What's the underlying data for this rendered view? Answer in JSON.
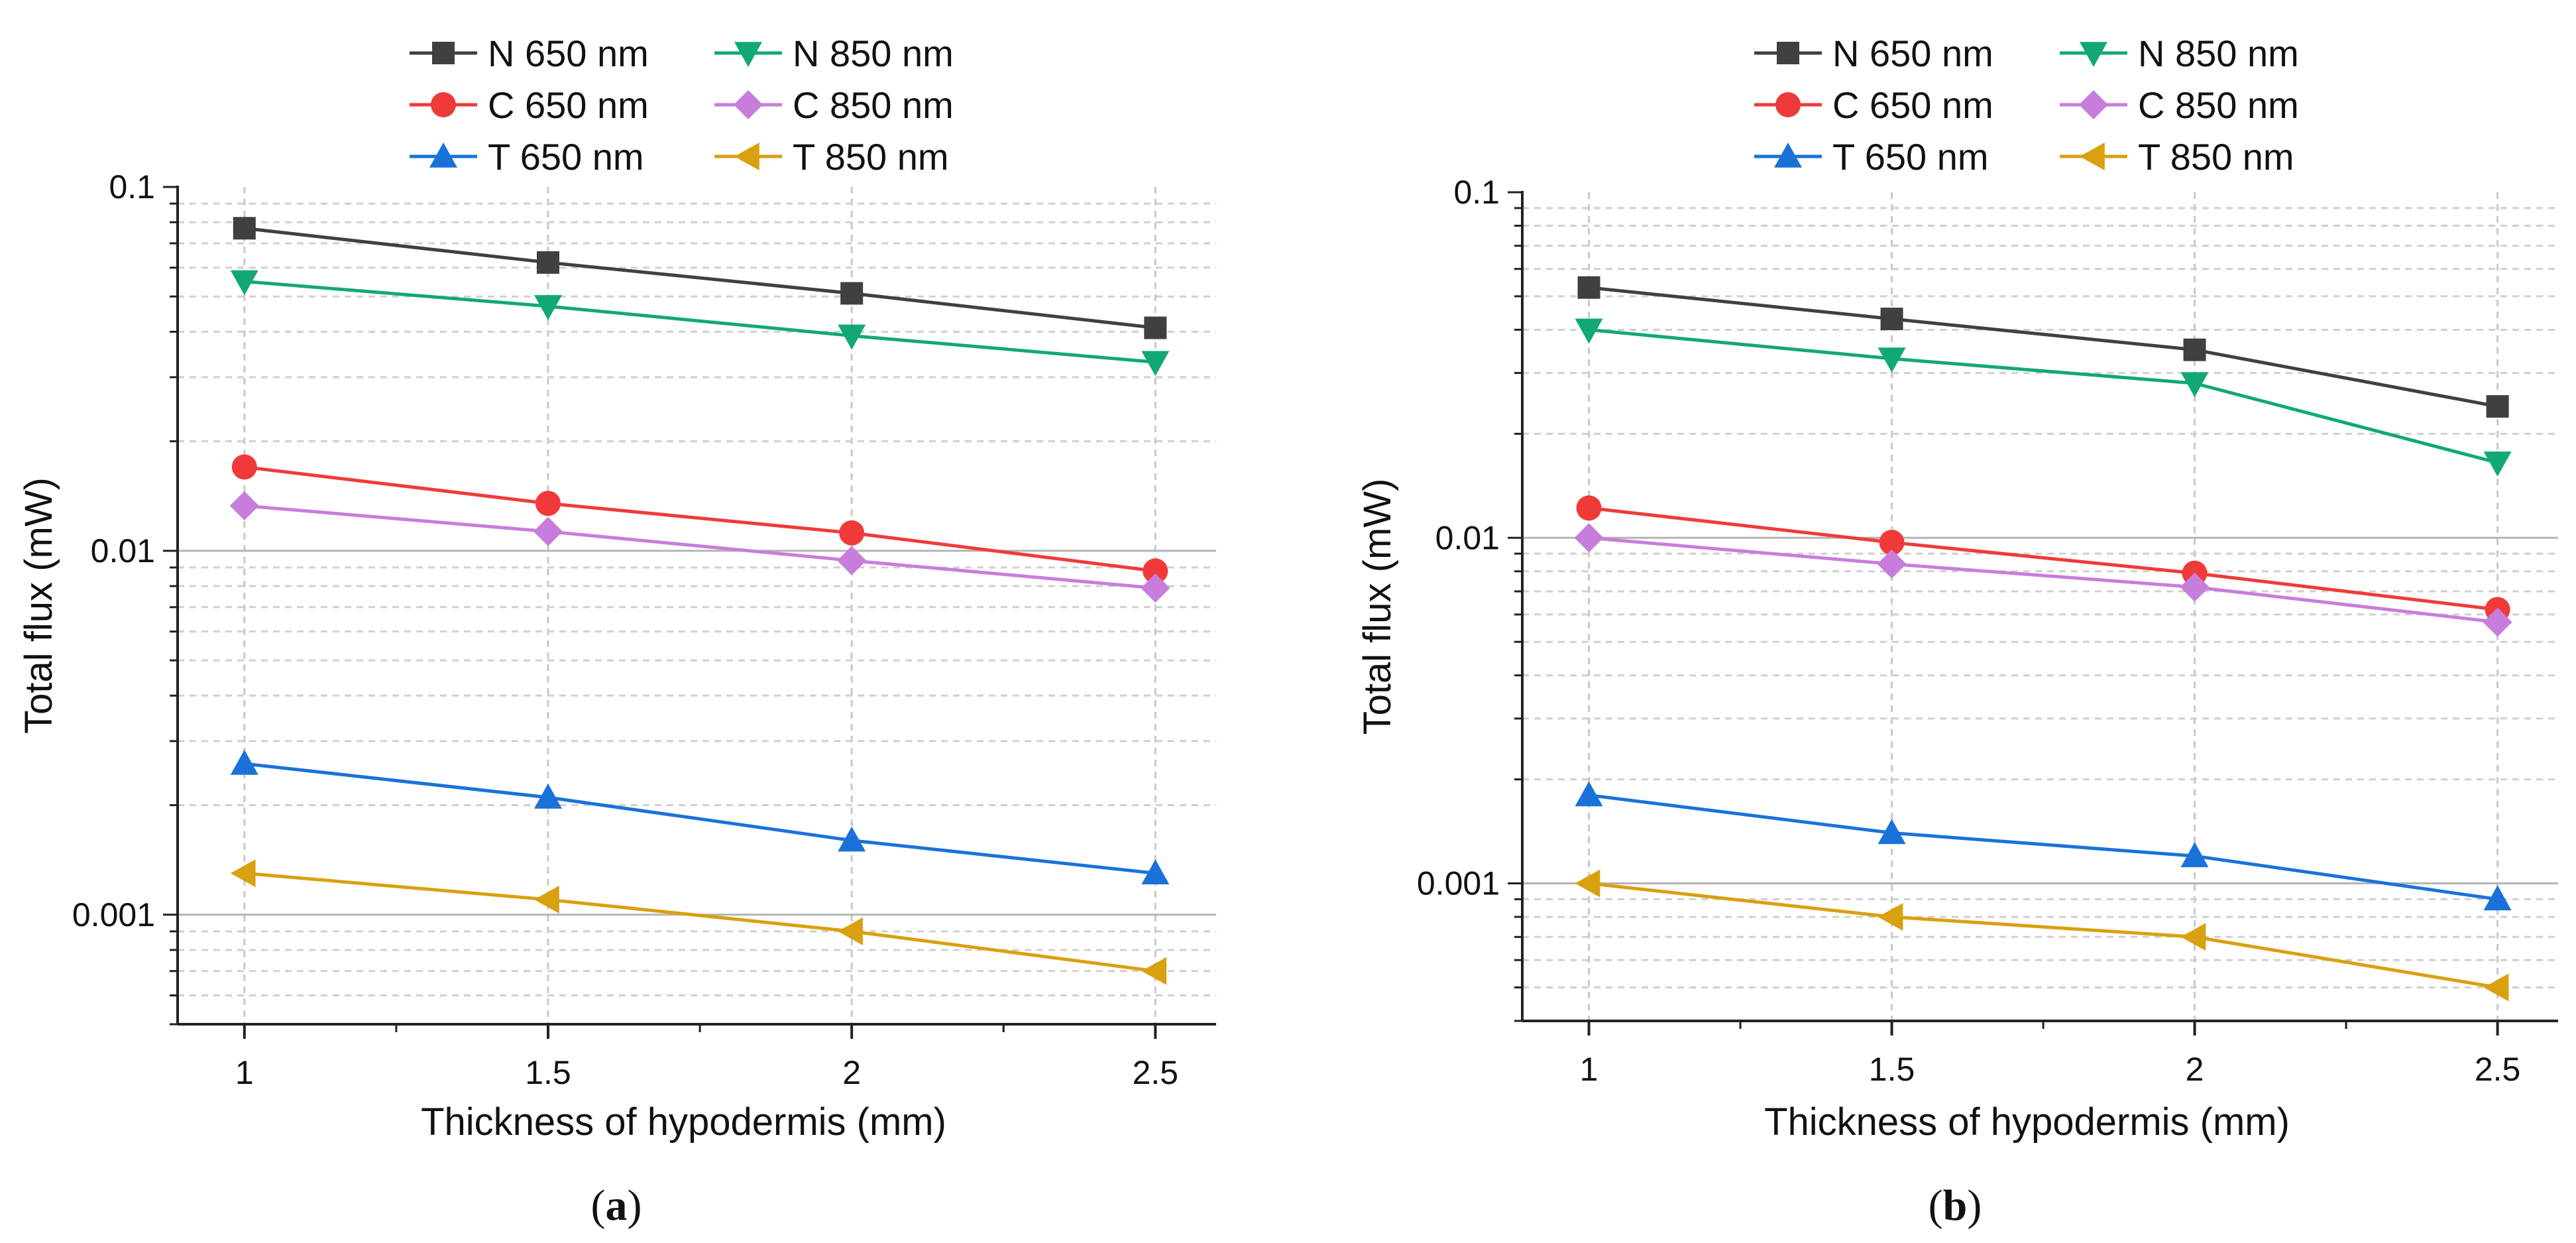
{
  "chart_data": [
    {
      "type": "line",
      "caption_open": "(",
      "caption_letter": "a",
      "caption_close": ")",
      "xlabel": "Thickness of hypodermis (mm)",
      "ylabel": "Total flux (mW)",
      "x": [
        1,
        1.5,
        2,
        2.5
      ],
      "x_tick_labels": [
        "1",
        "1.5",
        "2",
        "2.5"
      ],
      "xlim": [
        0.89,
        2.6
      ],
      "y_scale": "log",
      "ylim": [
        0.0005,
        0.1
      ],
      "y_tick_values": [
        0.1,
        0.01,
        0.001
      ],
      "y_tick_labels": [
        "0.1",
        "0.01",
        "0.001"
      ],
      "grid": true,
      "legend_position": "top",
      "series": [
        {
          "name": "N 650 nm",
          "values": [
            0.077,
            0.062,
            0.051,
            0.041
          ],
          "color": "#404040",
          "marker": "square"
        },
        {
          "name": "N 850 nm",
          "values": [
            0.055,
            0.047,
            0.039,
            0.033
          ],
          "color": "#12a876",
          "marker": "triangle-down"
        },
        {
          "name": "C 650 nm",
          "values": [
            0.017,
            0.0135,
            0.0112,
            0.0088
          ],
          "color": "#f03a3a",
          "marker": "circle"
        },
        {
          "name": "C 850 nm",
          "values": [
            0.0133,
            0.0113,
            0.0094,
            0.0079
          ],
          "color": "#c77ddb",
          "marker": "diamond"
        },
        {
          "name": "T 650 nm",
          "values": [
            0.0026,
            0.0021,
            0.0016,
            0.0013
          ],
          "color": "#1a72d9",
          "marker": "triangle-up"
        },
        {
          "name": "T 850 nm",
          "values": [
            0.0013,
            0.0011,
            0.0009,
            0.0007
          ],
          "color": "#d9a00f",
          "marker": "triangle-left"
        }
      ]
    },
    {
      "type": "line",
      "caption_open": "(",
      "caption_letter": "b",
      "caption_close": ")",
      "xlabel": "Thickness of hypodermis (mm)",
      "ylabel": "Total flux (mW)",
      "x": [
        1,
        1.5,
        2,
        2.5
      ],
      "x_tick_labels": [
        "1",
        "1.5",
        "2",
        "2.5"
      ],
      "xlim": [
        0.89,
        2.6
      ],
      "y_scale": "log",
      "ylim": [
        0.0004,
        0.1
      ],
      "y_tick_values": [
        0.1,
        0.01,
        0.001
      ],
      "y_tick_labels": [
        "0.1",
        "0.01",
        "0.001"
      ],
      "grid": true,
      "legend_position": "top",
      "series": [
        {
          "name": "N 650 nm",
          "values": [
            0.053,
            0.043,
            0.035,
            0.024
          ],
          "color": "#404040",
          "marker": "square"
        },
        {
          "name": "N 850 nm",
          "values": [
            0.04,
            0.033,
            0.028,
            0.0165
          ],
          "color": "#12a876",
          "marker": "triangle-down"
        },
        {
          "name": "C 650 nm",
          "values": [
            0.0122,
            0.0097,
            0.0079,
            0.0062
          ],
          "color": "#f03a3a",
          "marker": "circle"
        },
        {
          "name": "C 850 nm",
          "values": [
            0.01,
            0.0084,
            0.0072,
            0.0057
          ],
          "color": "#c77ddb",
          "marker": "diamond"
        },
        {
          "name": "T 650 nm",
          "values": [
            0.0018,
            0.0014,
            0.0012,
            0.0009
          ],
          "color": "#1a72d9",
          "marker": "triangle-up"
        },
        {
          "name": "T 850 nm",
          "values": [
            0.001,
            0.0008,
            0.0007,
            0.0005
          ],
          "color": "#d9a00f",
          "marker": "triangle-left"
        }
      ]
    }
  ]
}
